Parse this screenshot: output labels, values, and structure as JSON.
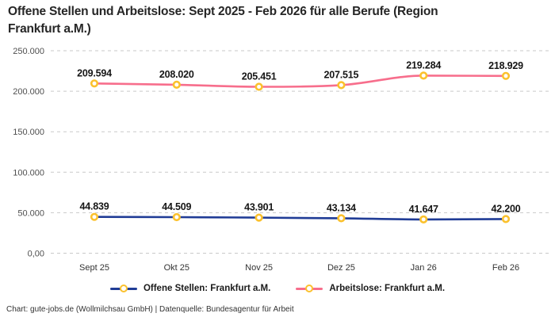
{
  "chart_data": {
    "type": "line",
    "title": "Offene Stellen und Arbeitslose: Sept 2025 - Feb 2026 für alle Berufe (Region Frankfurt a.M.)",
    "categories": [
      "Sept 25",
      "Okt 25",
      "Nov 25",
      "Dez 25",
      "Jan 26",
      "Feb 26"
    ],
    "series": [
      {
        "name": "Offene Stellen: Frankfurt a.M.",
        "color": "#203c96",
        "values": [
          44839,
          44509,
          43901,
          43134,
          41647,
          42200
        ],
        "labels": [
          "44.839",
          "44.509",
          "43.901",
          "43.134",
          "41.647",
          "42.200"
        ]
      },
      {
        "name": "Arbeitslose: Frankfurt a.M.",
        "color": "#f76e8c",
        "values": [
          209594,
          208020,
          205451,
          207515,
          219284,
          218929
        ],
        "labels": [
          "209.594",
          "208.020",
          "205.451",
          "207.515",
          "219.284",
          "218.929"
        ]
      }
    ],
    "y_ticks": [
      {
        "value": 0,
        "label": "0,00"
      },
      {
        "value": 50000,
        "label": "50.000"
      },
      {
        "value": 100000,
        "label": "100.000"
      },
      {
        "value": 150000,
        "label": "150.000"
      },
      {
        "value": 200000,
        "label": "200.000"
      },
      {
        "value": 250000,
        "label": "250.000"
      }
    ],
    "ylim": [
      0,
      250000
    ],
    "xlabel": "",
    "ylabel": "",
    "grid": "horizontal-dashed",
    "legend_position": "bottom",
    "marker": {
      "fill": "#ffffff",
      "stroke": "#fbc12d"
    }
  },
  "footer": {
    "credit": "Chart: gute-jobs.de (Wollmilchsau GmbH) | Datenquelle: Bundesagentur für Arbeit"
  },
  "colors": {
    "background": "#ffffff",
    "grid": "#c9c9c9",
    "axis_text": "#4f4f4f",
    "x_axis_text": "#333333",
    "title_text": "#262626",
    "data_label_text": "#161616"
  }
}
